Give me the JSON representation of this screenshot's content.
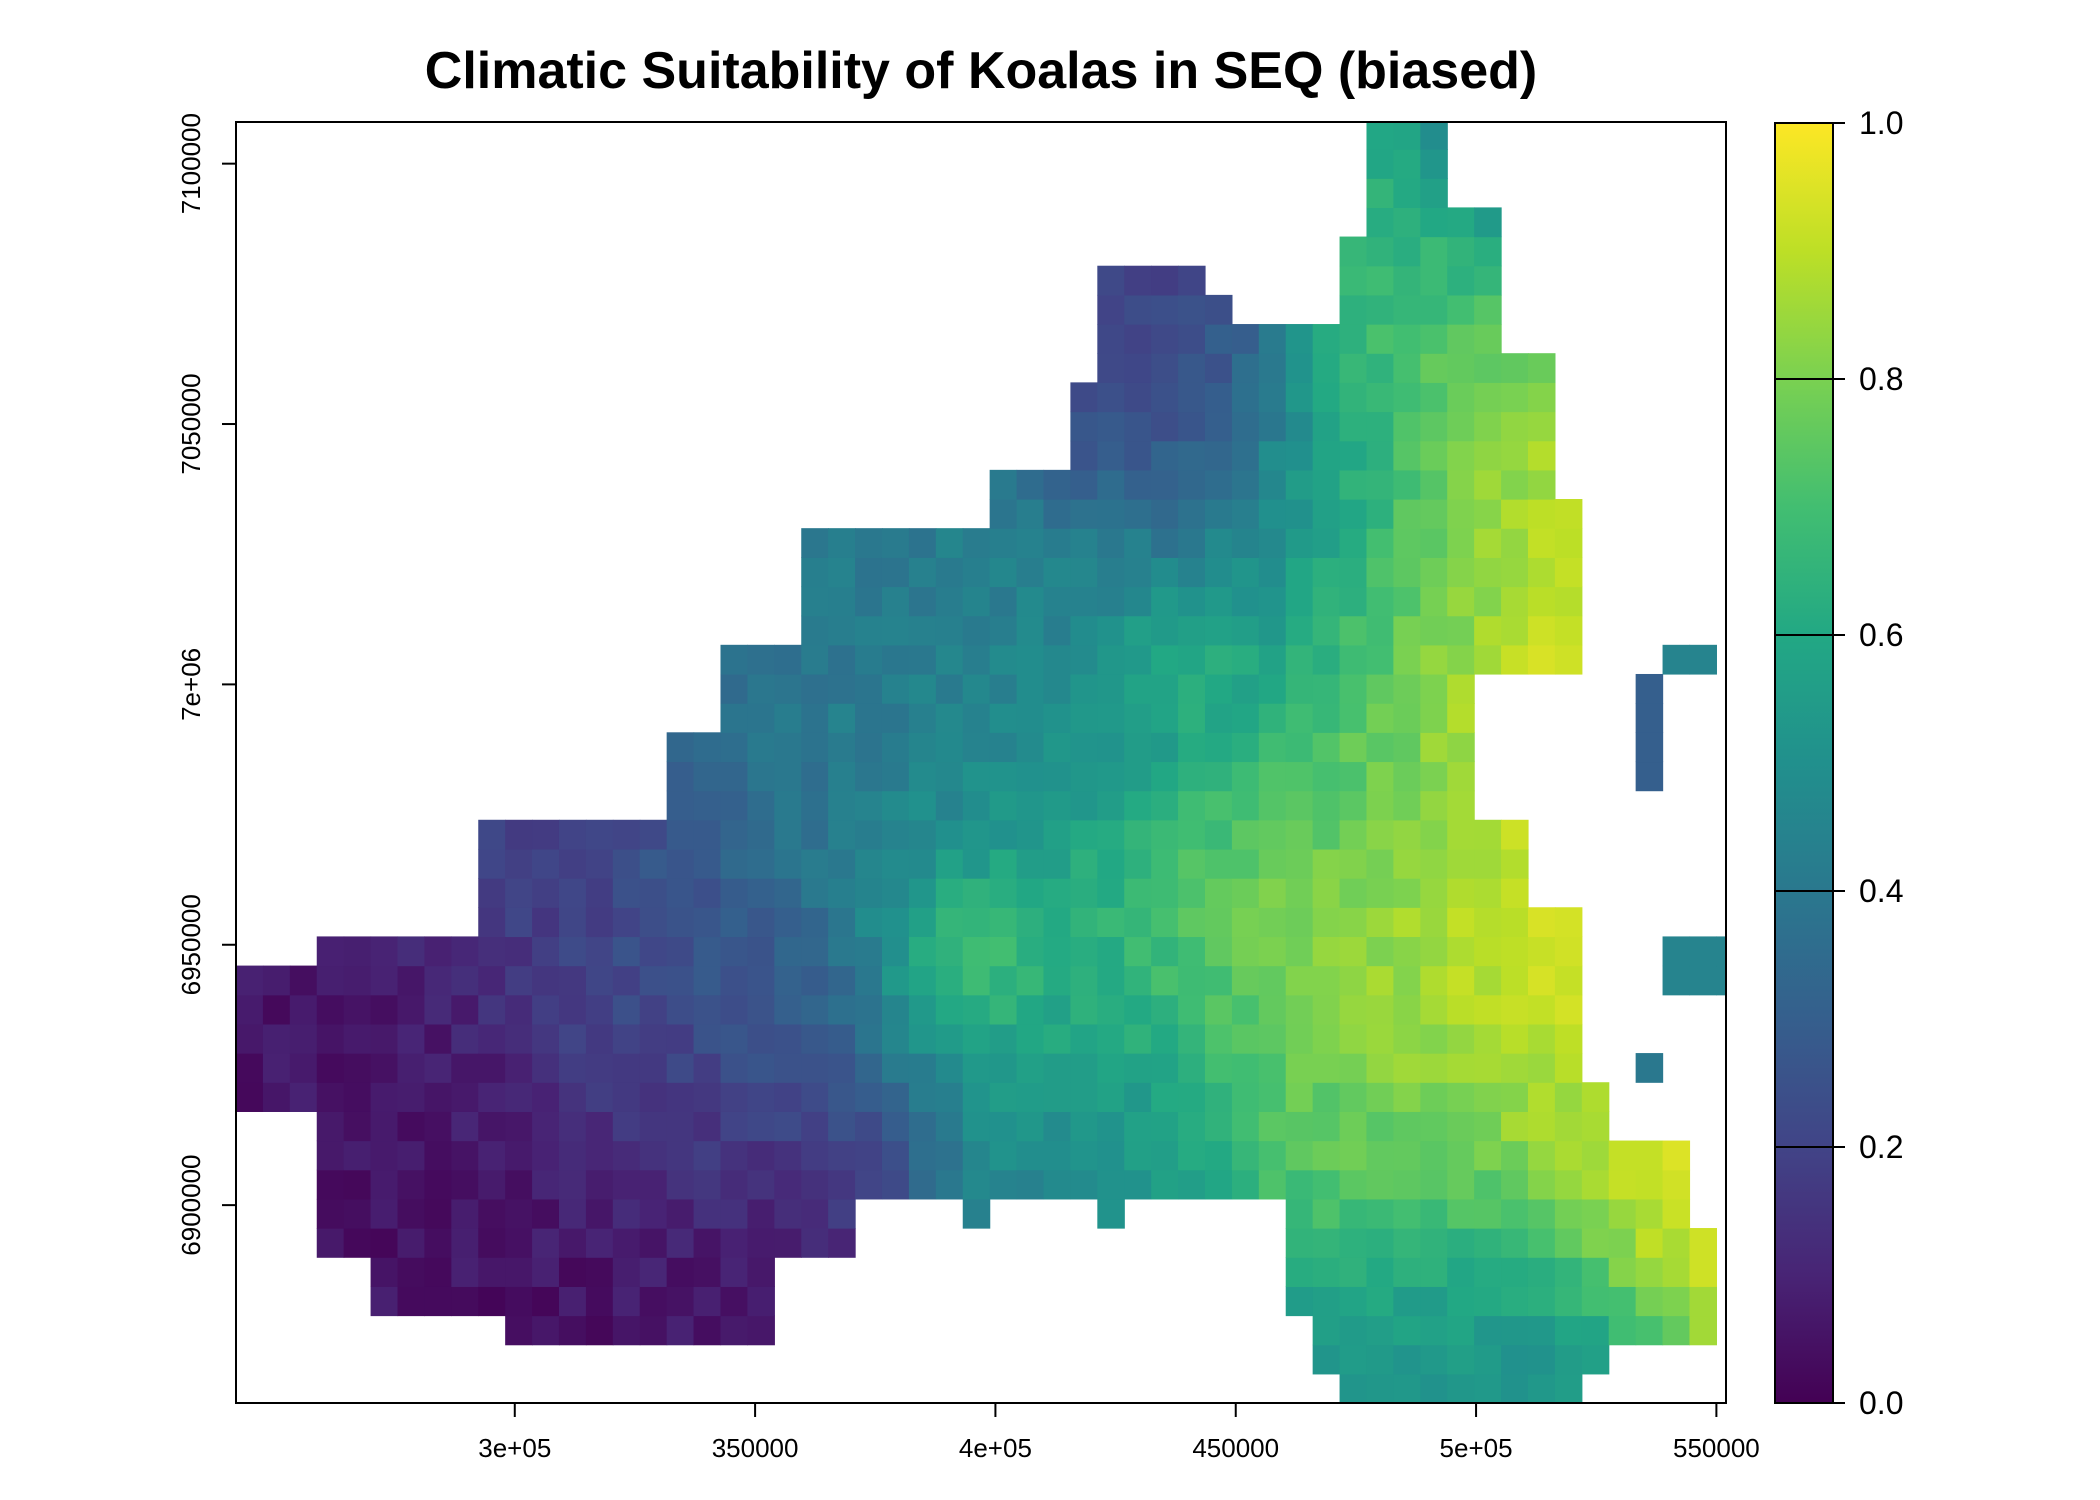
{
  "chart_data": {
    "type": "heatmap",
    "title": "Climatic Suitability of Koalas in SEQ (biased)",
    "xlabel": "",
    "ylabel": "",
    "xlim": [
      242000,
      552000
    ],
    "ylim": [
      6862000,
      7108000
    ],
    "x_ticks": [
      {
        "value": 300000,
        "label": "3e+05"
      },
      {
        "value": 350000,
        "label": "350000"
      },
      {
        "value": 400000,
        "label": "4e+05"
      },
      {
        "value": 450000,
        "label": "450000"
      },
      {
        "value": 500000,
        "label": "5e+05"
      },
      {
        "value": 550000,
        "label": "550000"
      }
    ],
    "y_ticks": [
      {
        "value": 6900000,
        "label": "6900000"
      },
      {
        "value": 6950000,
        "label": "6950000"
      },
      {
        "value": 7000000,
        "label": "7e+06"
      },
      {
        "value": 7050000,
        "label": "7050000"
      },
      {
        "value": 7100000,
        "label": "7100000"
      }
    ],
    "colorbar": {
      "palette": "viridis",
      "range": [
        0.0,
        1.0
      ],
      "tick_labels": [
        "0.0",
        "0.2",
        "0.4",
        "0.6",
        "0.8",
        "1.0"
      ],
      "stops": [
        "#440154",
        "#3b528b",
        "#21908c",
        "#5dc963",
        "#fde725"
      ]
    },
    "grid": false,
    "cell_size": 5600,
    "regions": [
      {
        "x": 275000,
        "y": 6900000,
        "r": 28000,
        "v": 0.05
      },
      {
        "x": 262000,
        "y": 6922000,
        "r": 22000,
        "v": 0.06
      },
      {
        "x": 330000,
        "y": 6890000,
        "r": 22000,
        "v": 0.03
      },
      {
        "x": 340000,
        "y": 6915000,
        "r": 22000,
        "v": 0.14
      },
      {
        "x": 318000,
        "y": 6955000,
        "r": 25000,
        "v": 0.18
      },
      {
        "x": 345000,
        "y": 6935000,
        "r": 20000,
        "v": 0.32
      },
      {
        "x": 365000,
        "y": 6975000,
        "r": 25000,
        "v": 0.4
      },
      {
        "x": 395000,
        "y": 6960000,
        "r": 20000,
        "v": 0.55
      },
      {
        "x": 395000,
        "y": 6950000,
        "r": 10000,
        "v": 0.92
      },
      {
        "x": 425000,
        "y": 6950000,
        "r": 20000,
        "v": 0.72
      },
      {
        "x": 430000,
        "y": 6920000,
        "r": 25000,
        "v": 0.45
      },
      {
        "x": 405000,
        "y": 7000000,
        "r": 25000,
        "v": 0.42
      },
      {
        "x": 430000,
        "y": 6995000,
        "r": 18000,
        "v": 0.55
      },
      {
        "x": 440000,
        "y": 7005000,
        "r": 8000,
        "v": 0.78
      },
      {
        "x": 450000,
        "y": 7030000,
        "r": 20000,
        "v": 0.38
      },
      {
        "x": 440000,
        "y": 7055000,
        "r": 15000,
        "v": 0.15
      },
      {
        "x": 430000,
        "y": 7065000,
        "r": 15000,
        "v": 0.2
      },
      {
        "x": 470000,
        "y": 7040000,
        "r": 20000,
        "v": 0.55
      },
      {
        "x": 475000,
        "y": 6980000,
        "r": 20000,
        "v": 0.55
      },
      {
        "x": 455000,
        "y": 6955000,
        "r": 22000,
        "v": 0.85
      },
      {
        "x": 470000,
        "y": 6945000,
        "r": 15000,
        "v": 0.88
      },
      {
        "x": 500000,
        "y": 6985000,
        "r": 25000,
        "v": 0.97
      },
      {
        "x": 510000,
        "y": 6950000,
        "r": 30000,
        "v": 0.97
      },
      {
        "x": 525000,
        "y": 6925000,
        "r": 25000,
        "v": 0.88
      },
      {
        "x": 540000,
        "y": 6905000,
        "r": 15000,
        "v": 0.95
      },
      {
        "x": 485000,
        "y": 6910000,
        "r": 25000,
        "v": 0.72
      },
      {
        "x": 470000,
        "y": 6905000,
        "r": 15000,
        "v": 0.85
      },
      {
        "x": 485000,
        "y": 6880000,
        "r": 20000,
        "v": 0.55
      },
      {
        "x": 465000,
        "y": 6875000,
        "r": 15000,
        "v": 0.42
      },
      {
        "x": 505000,
        "y": 6870000,
        "r": 18000,
        "v": 0.45
      },
      {
        "x": 490000,
        "y": 7035000,
        "r": 20000,
        "v": 0.82
      },
      {
        "x": 510000,
        "y": 7040000,
        "r": 15000,
        "v": 0.92
      },
      {
        "x": 495000,
        "y": 7075000,
        "r": 20000,
        "v": 0.75
      },
      {
        "x": 500000,
        "y": 7095000,
        "r": 15000,
        "v": 0.5
      },
      {
        "x": 505000,
        "y": 7105000,
        "r": 10000,
        "v": 0.35
      },
      {
        "x": 545000,
        "y": 6950000,
        "r": 8000,
        "v": 0.45
      },
      {
        "x": 537000,
        "y": 6995000,
        "r": 8000,
        "v": 0.3
      }
    ],
    "footprint": [
      [
        272000,
        6881000
      ],
      [
        300000,
        6881000
      ],
      [
        300000,
        6873000
      ],
      [
        356000,
        6873000
      ],
      [
        356000,
        6888000
      ],
      [
        370000,
        6888000
      ],
      [
        370000,
        6901000
      ],
      [
        395000,
        6901000
      ],
      [
        395000,
        6894000
      ],
      [
        400000,
        6894000
      ],
      [
        400000,
        6901000
      ],
      [
        420000,
        6901000
      ],
      [
        420000,
        6894000
      ],
      [
        426000,
        6894000
      ],
      [
        426000,
        6901000
      ],
      [
        458000,
        6901000
      ],
      [
        458000,
        6894000
      ],
      [
        463000,
        6894000
      ],
      [
        463000,
        6881000
      ],
      [
        468000,
        6881000
      ],
      [
        468000,
        6870000
      ],
      [
        473000,
        6870000
      ],
      [
        473000,
        6863000
      ],
      [
        520000,
        6863000
      ],
      [
        520000,
        6867000
      ],
      [
        528000,
        6867000
      ],
      [
        528000,
        6876000
      ],
      [
        548000,
        6876000
      ],
      [
        548000,
        6897000
      ],
      [
        542000,
        6897000
      ],
      [
        542000,
        6912000
      ],
      [
        528000,
        6912000
      ],
      [
        528000,
        6926000
      ],
      [
        520000,
        6926000
      ],
      [
        520000,
        6958000
      ],
      [
        510000,
        6958000
      ],
      [
        510000,
        6976000
      ],
      [
        502000,
        6976000
      ],
      [
        502000,
        7000000
      ],
      [
        520000,
        7000000
      ],
      [
        520000,
        7037000
      ],
      [
        514000,
        7037000
      ],
      [
        514000,
        7062000
      ],
      [
        508000,
        7062000
      ],
      [
        508000,
        7090000
      ],
      [
        496000,
        7090000
      ],
      [
        496000,
        7108000
      ],
      [
        478000,
        7108000
      ],
      [
        478000,
        7084000
      ],
      [
        472000,
        7084000
      ],
      [
        472000,
        7068000
      ],
      [
        452000,
        7068000
      ],
      [
        452000,
        7073000
      ],
      [
        446000,
        7073000
      ],
      [
        446000,
        7078000
      ],
      [
        419000,
        7078000
      ],
      [
        419000,
        7058000
      ],
      [
        413000,
        7058000
      ],
      [
        413000,
        7043000
      ],
      [
        400000,
        7043000
      ],
      [
        400000,
        7030000
      ],
      [
        360000,
        7030000
      ],
      [
        360000,
        7010000
      ],
      [
        345000,
        7010000
      ],
      [
        345000,
        6993000
      ],
      [
        330000,
        6993000
      ],
      [
        330000,
        6975000
      ],
      [
        295000,
        6975000
      ],
      [
        295000,
        6953000
      ],
      [
        260000,
        6953000
      ],
      [
        260000,
        6945000
      ],
      [
        242000,
        6945000
      ],
      [
        242000,
        6918000
      ],
      [
        258000,
        6918000
      ],
      [
        258000,
        6890000
      ],
      [
        272000,
        6890000
      ]
    ],
    "islands": [
      {
        "polygon": [
          [
            536000,
            6980000
          ],
          [
            541000,
            6980000
          ],
          [
            541000,
            7002000
          ],
          [
            536000,
            7002000
          ]
        ],
        "v": 0.3
      },
      {
        "polygon": [
          [
            541000,
            7002000
          ],
          [
            548000,
            7002000
          ],
          [
            548000,
            7007000
          ],
          [
            541000,
            7007000
          ]
        ],
        "v": 0.45
      },
      {
        "polygon": [
          [
            541000,
            6940000
          ],
          [
            553000,
            6940000
          ],
          [
            553000,
            6952000
          ],
          [
            541000,
            6952000
          ]
        ],
        "v": 0.45
      },
      {
        "polygon": [
          [
            536000,
            6923000
          ],
          [
            541000,
            6923000
          ],
          [
            541000,
            6930000
          ],
          [
            536000,
            6930000
          ]
        ],
        "v": 0.4
      }
    ]
  }
}
